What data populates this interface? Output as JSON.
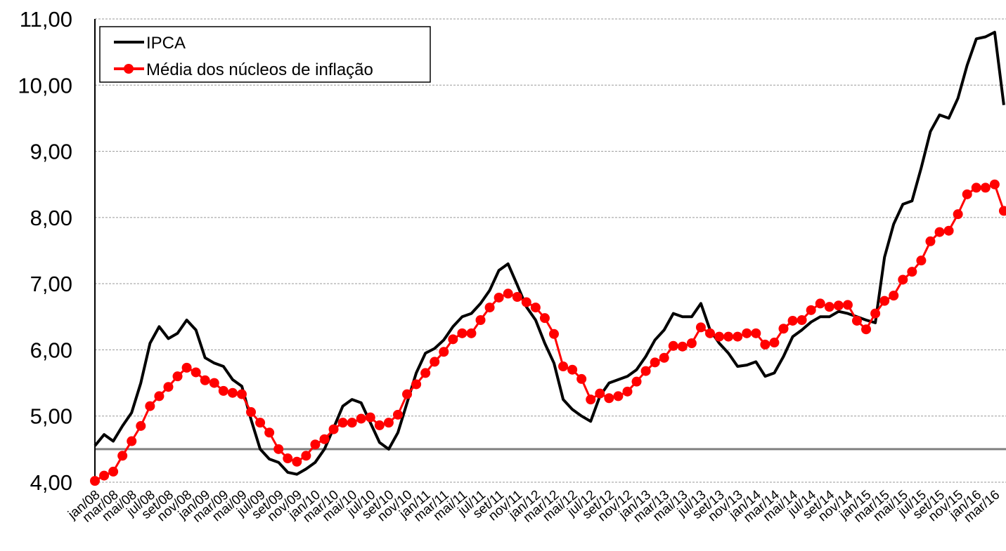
{
  "chart_data": {
    "type": "line",
    "categories": [
      "jan/08",
      null,
      "mar/08",
      null,
      "mai/08",
      null,
      "jul/08",
      null,
      "set/08",
      null,
      "nov/08",
      null,
      "jan/09",
      null,
      "mar/09",
      null,
      "mai/09",
      null,
      "jul/09",
      null,
      "set/09",
      null,
      "nov/09",
      null,
      "jan/10",
      null,
      "mar/10",
      null,
      "mai/10",
      null,
      "jul/10",
      null,
      "set/10",
      null,
      "nov/10",
      null,
      "jan/11",
      null,
      "mar/11",
      null,
      "mai/11",
      null,
      "jul/11",
      null,
      "set/11",
      null,
      "nov/11",
      null,
      "jan/12",
      null,
      "mar/12",
      null,
      "mai/12",
      null,
      "jul/12",
      null,
      "set/12",
      null,
      "nov/12",
      null,
      "jan/13",
      null,
      "mar/13",
      null,
      "mai/13",
      null,
      "jul/13",
      null,
      "set/13",
      null,
      "nov/13",
      null,
      "jan/14",
      null,
      "mar/14",
      null,
      "mai/14",
      null,
      "jul/14",
      null,
      "set/14",
      null,
      "nov/14",
      null,
      "jan/15",
      null,
      "mar/15",
      null,
      "mai/15",
      null,
      "jul/15",
      null,
      "set/15",
      null,
      "nov/15",
      null,
      "jan/16",
      null,
      "mar/16",
      null
    ],
    "series": [
      {
        "name": "IPCA",
        "color": "#000000",
        "markers": false,
        "values": [
          4.55,
          4.72,
          4.62,
          4.85,
          5.05,
          5.5,
          6.1,
          6.35,
          6.17,
          6.25,
          6.45,
          6.3,
          5.88,
          5.8,
          5.75,
          5.55,
          5.45,
          4.95,
          4.5,
          4.35,
          4.3,
          4.15,
          4.12,
          4.2,
          4.3,
          4.5,
          4.82,
          5.15,
          5.25,
          5.2,
          4.9,
          4.6,
          4.5,
          4.75,
          5.2,
          5.65,
          5.95,
          6.02,
          6.15,
          6.35,
          6.5,
          6.55,
          6.7,
          6.9,
          7.2,
          7.3,
          6.98,
          6.65,
          6.45,
          6.1,
          5.8,
          5.25,
          5.1,
          5.0,
          4.92,
          5.3,
          5.5,
          5.55,
          5.6,
          5.7,
          5.9,
          6.15,
          6.3,
          6.55,
          6.5,
          6.5,
          6.7,
          6.3,
          6.1,
          5.95,
          5.75,
          5.77,
          5.82,
          5.6,
          5.65,
          5.9,
          6.2,
          6.3,
          6.42,
          6.5,
          6.5,
          6.58,
          6.55,
          6.5,
          6.45,
          6.41,
          7.4,
          7.9,
          8.2,
          8.25,
          8.75,
          9.3,
          9.55,
          9.5,
          9.8,
          10.3,
          10.7,
          10.73,
          10.8,
          9.7
        ]
      },
      {
        "name": "Média dos núcleos de inflação",
        "color": "#ff0000",
        "markers": true,
        "values": [
          4.02,
          4.1,
          4.16,
          4.4,
          4.62,
          4.85,
          5.15,
          5.3,
          5.44,
          5.6,
          5.73,
          5.66,
          5.54,
          5.5,
          5.38,
          5.35,
          5.33,
          5.06,
          4.9,
          4.75,
          4.5,
          4.36,
          4.31,
          4.4,
          4.57,
          4.65,
          4.8,
          4.9,
          4.9,
          4.96,
          4.98,
          4.86,
          4.9,
          5.02,
          5.33,
          5.48,
          5.65,
          5.82,
          5.97,
          6.16,
          6.25,
          6.25,
          6.45,
          6.64,
          6.79,
          6.85,
          6.8,
          6.72,
          6.64,
          6.48,
          6.24,
          5.75,
          5.7,
          5.56,
          5.25,
          5.34,
          5.27,
          5.3,
          5.37,
          5.52,
          5.68,
          5.81,
          5.88,
          6.06,
          6.05,
          6.1,
          6.34,
          6.25,
          6.2,
          6.2,
          6.2,
          6.25,
          6.25,
          6.08,
          6.11,
          6.32,
          6.44,
          6.45,
          6.6,
          6.7,
          6.65,
          6.67,
          6.68,
          6.44,
          6.31,
          6.55,
          6.74,
          6.82,
          7.06,
          7.18,
          7.35,
          7.64,
          7.78,
          7.8,
          8.05,
          8.35,
          8.45,
          8.45,
          8.5,
          8.1
        ]
      }
    ],
    "ylim": [
      4,
      11
    ],
    "yticks": [
      {
        "value": 4,
        "label": "4,00"
      },
      {
        "value": 5,
        "label": "5,00"
      },
      {
        "value": 6,
        "label": "6,00"
      },
      {
        "value": 7,
        "label": "7,00"
      },
      {
        "value": 8,
        "label": "8,00"
      },
      {
        "value": 9,
        "label": "9,00"
      },
      {
        "value": 10,
        "label": "10,00"
      },
      {
        "value": 11,
        "label": "11,00"
      }
    ],
    "grid": true,
    "reference_line": {
      "value": 4.5,
      "color": "#808080"
    },
    "legend": "upper left"
  }
}
